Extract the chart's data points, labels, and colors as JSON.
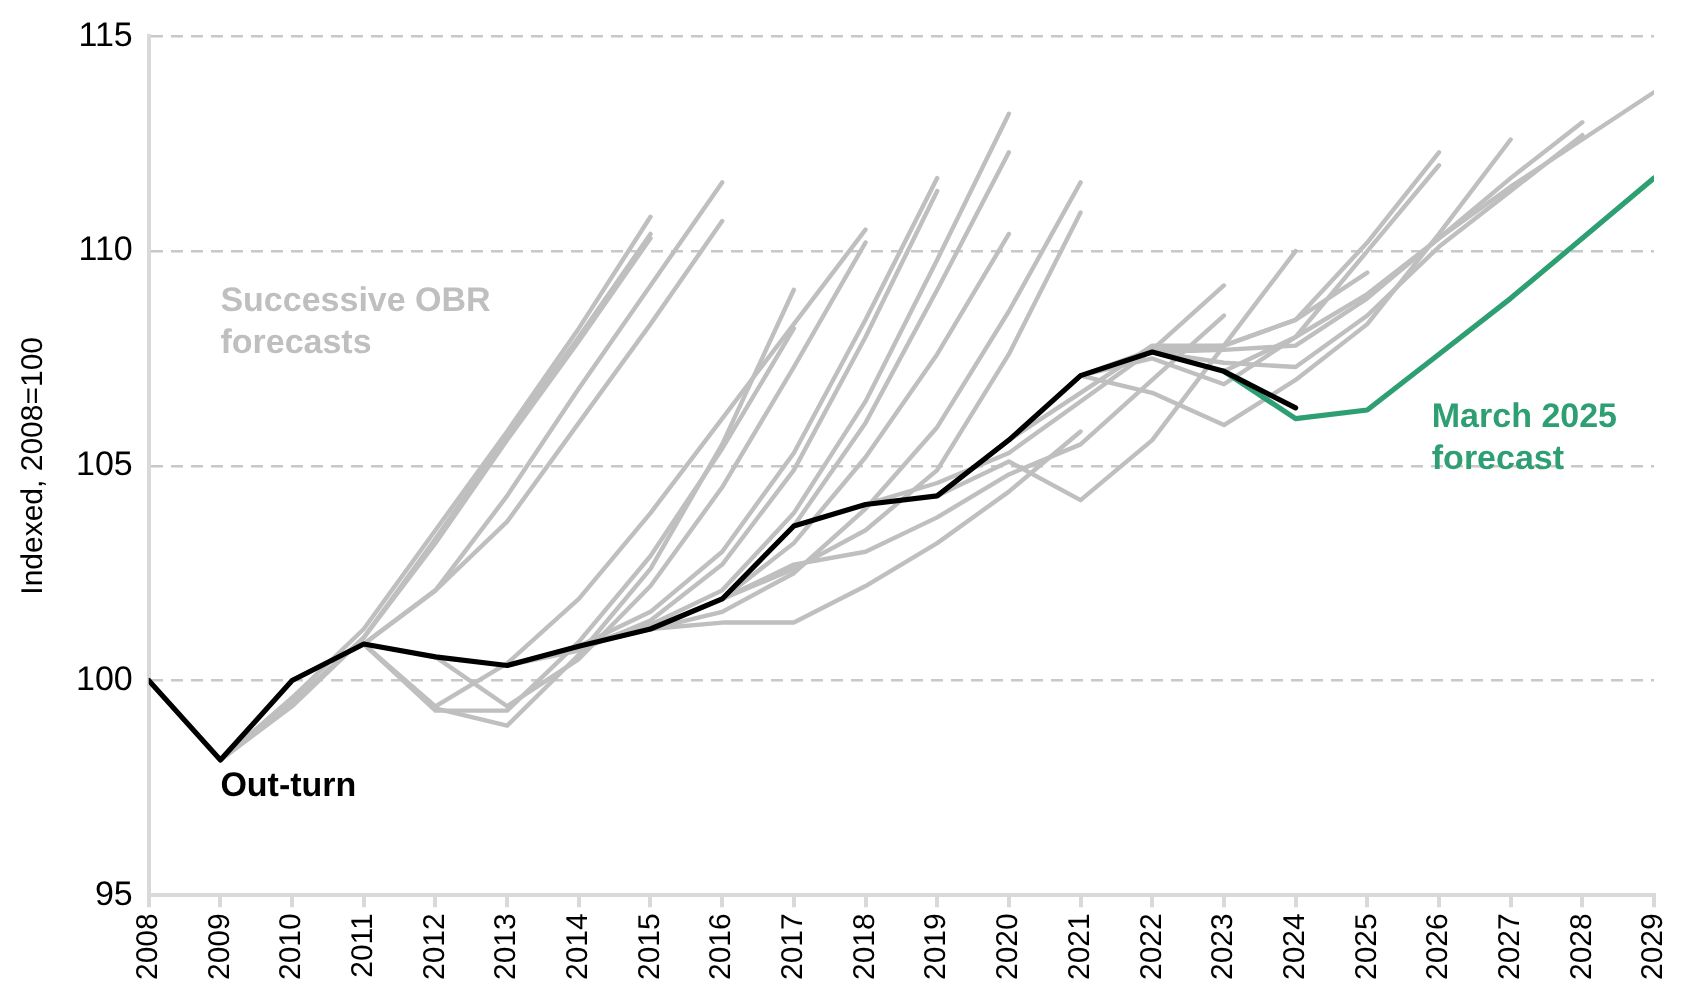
{
  "chart_data": {
    "type": "line",
    "ylabel": "Indexed, 2008=100",
    "xlim": [
      2008,
      2029
    ],
    "xticks": [
      2008,
      2009,
      2010,
      2011,
      2012,
      2013,
      2014,
      2015,
      2016,
      2017,
      2018,
      2019,
      2020,
      2021,
      2022,
      2023,
      2024,
      2025,
      2026,
      2027,
      2028,
      2029
    ],
    "ylim": [
      95,
      115
    ],
    "yticks": [
      95,
      100,
      105,
      110,
      115
    ],
    "grid": "y",
    "legend": false,
    "marker": "none",
    "line_style": "solid",
    "series": [
      {
        "name": "Successive OBR forecasts",
        "color": "#bfbfbf",
        "x": [
          2009,
          2010,
          2011,
          2012,
          2013,
          2014,
          2015
        ],
        "values": [
          98.15,
          99.6,
          101.2,
          103.5,
          105.8,
          108.2,
          110.8
        ]
      },
      {
        "color": "#bfbfbf",
        "x": [
          2009,
          2010,
          2011,
          2012,
          2013,
          2014,
          2015
        ],
        "values": [
          98.15,
          99.4,
          101.0,
          103.3,
          105.7,
          108.0,
          110.4
        ]
      },
      {
        "color": "#bfbfbf",
        "x": [
          2009,
          2010,
          2011,
          2012,
          2013,
          2014,
          2015
        ],
        "values": [
          98.15,
          99.5,
          101.0,
          103.2,
          105.6,
          107.9,
          110.3
        ]
      },
      {
        "color": "#bfbfbf",
        "x": [
          2010,
          2011,
          2012,
          2013,
          2014,
          2015,
          2016
        ],
        "values": [
          100,
          100.85,
          102.1,
          104.3,
          106.8,
          109.2,
          111.6
        ]
      },
      {
        "color": "#bfbfbf",
        "x": [
          2010,
          2011,
          2012,
          2013,
          2014,
          2015,
          2016
        ],
        "values": [
          100,
          100.85,
          102.1,
          103.7,
          106.0,
          108.3,
          110.7
        ]
      },
      {
        "color": "#bfbfbf",
        "x": [
          2011,
          2012,
          2013,
          2014,
          2015,
          2016,
          2017
        ],
        "values": [
          100.85,
          99.35,
          98.95,
          100.6,
          102.6,
          105.5,
          109.1
        ]
      },
      {
        "color": "#bfbfbf",
        "x": [
          2011,
          2012,
          2013,
          2014,
          2015,
          2016,
          2017
        ],
        "values": [
          100.85,
          99.3,
          99.3,
          100.9,
          102.9,
          105.4,
          108.2
        ]
      },
      {
        "color": "#bfbfbf",
        "x": [
          2011,
          2012,
          2013,
          2014,
          2015,
          2016,
          2017,
          2018
        ],
        "values": [
          100.85,
          99.4,
          100.4,
          101.9,
          103.9,
          106.1,
          108.3,
          110.5
        ]
      },
      {
        "color": "#bfbfbf",
        "x": [
          2012,
          2013,
          2014,
          2015,
          2016,
          2017,
          2018
        ],
        "values": [
          100.55,
          99.4,
          100.5,
          102.2,
          104.5,
          107.3,
          110.2
        ]
      },
      {
        "color": "#bfbfbf",
        "x": [
          2013,
          2014,
          2015,
          2016,
          2017,
          2018,
          2019
        ],
        "values": [
          100.35,
          100.8,
          101.6,
          103.0,
          105.3,
          108.4,
          111.7
        ]
      },
      {
        "color": "#bfbfbf",
        "x": [
          2013,
          2014,
          2015,
          2016,
          2017,
          2018,
          2019
        ],
        "values": [
          100.35,
          100.7,
          101.4,
          102.7,
          104.9,
          108.0,
          111.4
        ]
      },
      {
        "color": "#bfbfbf",
        "x": [
          2014,
          2015,
          2016,
          2017,
          2018,
          2019,
          2020
        ],
        "values": [
          100.8,
          101.3,
          102.1,
          103.9,
          106.5,
          109.8,
          113.2
        ]
      },
      {
        "color": "#bfbfbf",
        "x": [
          2014,
          2015,
          2016,
          2017,
          2018,
          2019,
          2020
        ],
        "values": [
          100.8,
          101.2,
          101.9,
          103.6,
          106.0,
          109.1,
          112.3
        ]
      },
      {
        "color": "#bfbfbf",
        "x": [
          2015,
          2016,
          2017,
          2018,
          2019,
          2020
        ],
        "values": [
          101.2,
          101.9,
          103.2,
          105.2,
          107.6,
          110.4
        ]
      },
      {
        "color": "#bfbfbf",
        "x": [
          2015,
          2016,
          2017,
          2018,
          2019,
          2020,
          2021
        ],
        "values": [
          101.2,
          101.6,
          102.5,
          104.0,
          105.9,
          108.6,
          111.6
        ]
      },
      {
        "color": "#bfbfbf",
        "x": [
          2016,
          2017,
          2018,
          2019,
          2020,
          2021
        ],
        "values": [
          101.9,
          102.6,
          103.5,
          104.9,
          107.6,
          110.9
        ]
      },
      {
        "color": "#bfbfbf",
        "x": [
          2015,
          2016,
          2017,
          2018,
          2019,
          2020,
          2021
        ],
        "values": [
          101.2,
          101.35,
          101.35,
          102.2,
          103.2,
          104.4,
          105.8
        ]
      },
      {
        "color": "#bfbfbf",
        "x": [
          2016,
          2017,
          2018,
          2019,
          2020,
          2021,
          2022,
          2023
        ],
        "values": [
          101.9,
          102.7,
          103.0,
          103.8,
          104.8,
          105.5,
          107.0,
          108.5
        ]
      },
      {
        "color": "#bfbfbf",
        "x": [
          2019,
          2020,
          2021,
          2022,
          2023,
          2024
        ],
        "values": [
          104.3,
          105.1,
          104.2,
          105.6,
          107.8,
          110.0
        ]
      },
      {
        "color": "#bfbfbf",
        "x": [
          2018,
          2019,
          2020,
          2021,
          2022,
          2023
        ],
        "values": [
          104.1,
          104.6,
          105.3,
          106.5,
          107.7,
          109.2
        ]
      },
      {
        "color": "#bfbfbf",
        "x": [
          2020,
          2021,
          2022,
          2023,
          2024,
          2025
        ],
        "values": [
          105.6,
          106.7,
          107.8,
          107.8,
          108.4,
          109.5
        ]
      },
      {
        "color": "#bfbfbf",
        "x": [
          2021,
          2022,
          2023,
          2024,
          2025,
          2026
        ],
        "values": [
          107.1,
          107.7,
          107.8,
          108.4,
          110.2,
          112.3
        ]
      },
      {
        "color": "#bfbfbf",
        "x": [
          2021,
          2022,
          2023,
          2024,
          2025,
          2026
        ],
        "values": [
          107.1,
          107.5,
          106.9,
          108.0,
          110.0,
          112.0
        ]
      },
      {
        "color": "#bfbfbf",
        "x": [
          2021,
          2022,
          2023,
          2024,
          2025,
          2026,
          2027
        ],
        "values": [
          107.1,
          106.7,
          105.95,
          107.0,
          108.3,
          110.4,
          112.6
        ]
      },
      {
        "color": "#bfbfbf",
        "x": [
          2022,
          2023,
          2024,
          2025,
          2026,
          2027,
          2028
        ],
        "values": [
          107.65,
          107.7,
          107.8,
          108.9,
          110.3,
          111.7,
          113.0
        ]
      },
      {
        "color": "#bfbfbf",
        "x": [
          2022,
          2023,
          2024,
          2025,
          2026,
          2027,
          2028
        ],
        "values": [
          107.65,
          107.4,
          107.3,
          108.5,
          110.1,
          111.4,
          112.7
        ]
      },
      {
        "color": "#bfbfbf",
        "x": [
          2023,
          2024,
          2025,
          2026,
          2027,
          2028,
          2029
        ],
        "values": [
          107.2,
          108.0,
          109.0,
          110.3,
          111.5,
          112.6,
          113.7
        ]
      },
      {
        "name": "March 2025 forecast",
        "color": "#2e9e73",
        "x": [
          2023,
          2024,
          2025,
          2026,
          2027,
          2028,
          2029
        ],
        "values": [
          107.2,
          106.1,
          106.3,
          107.6,
          108.9,
          110.3,
          111.7
        ]
      },
      {
        "name": "Out-turn",
        "color": "#000000",
        "x": [
          2008,
          2009,
          2010,
          2011,
          2012,
          2013,
          2014,
          2015,
          2016,
          2017,
          2018,
          2019,
          2020,
          2021,
          2022,
          2023,
          2024
        ],
        "values": [
          100,
          98.15,
          100,
          100.85,
          100.55,
          100.35,
          100.8,
          101.2,
          101.9,
          103.6,
          104.1,
          104.3,
          105.6,
          107.1,
          107.65,
          107.2,
          106.35
        ]
      }
    ]
  }
}
